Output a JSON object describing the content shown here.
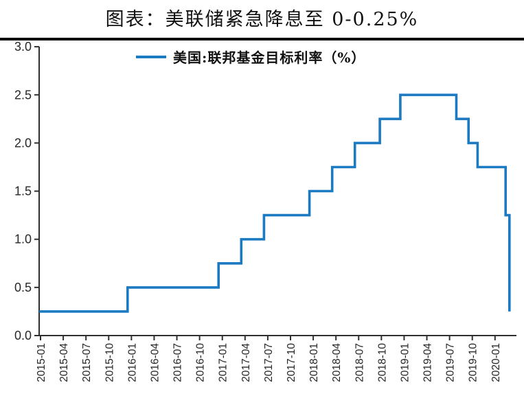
{
  "title": "图表：美联储紧急降息至 0-0.25%",
  "legend": {
    "label": "美国:联邦基金目标利率（%）"
  },
  "colors": {
    "line": "#1b7ac2",
    "axis": "#2e2e2e",
    "tick_text": "#262626",
    "title_text": "#111111",
    "title_rule": "#000000"
  },
  "chart_data": {
    "type": "line",
    "step": true,
    "title": "图表：美联储紧急降息至 0-0.25%",
    "series_name": "美国:联邦基金目标利率（%）",
    "xlabel": "",
    "ylabel": "",
    "ylim": [
      0.0,
      3.0
    ],
    "grid": false,
    "legend_position": "top-center",
    "y_tick_labels": [
      "0.0",
      "0.5",
      "1.0",
      "1.5",
      "2.0",
      "2.5",
      "3.0"
    ],
    "y_ticks": [
      0.0,
      0.5,
      1.0,
      1.5,
      2.0,
      2.5,
      3.0
    ],
    "x_tick_labels": [
      "2015-01",
      "2015-04",
      "2015-07",
      "2015-10",
      "2016-01",
      "2016-04",
      "2016-07",
      "2016-10",
      "2017-01",
      "2017-04",
      "2017-07",
      "2017-10",
      "2018-01",
      "2018-04",
      "2018-07",
      "2018-10",
      "2019-01",
      "2019-04",
      "2019-07",
      "2019-10",
      "2020-01"
    ],
    "x_tick_interval_months": 3,
    "steps": [
      {
        "date": "2015-01",
        "month": 0,
        "rate": 0.25
      },
      {
        "date": "2015-12",
        "month": 11.5,
        "rate": 0.5
      },
      {
        "date": "2016-12",
        "month": 23.5,
        "rate": 0.75
      },
      {
        "date": "2017-03",
        "month": 26.5,
        "rate": 1.0
      },
      {
        "date": "2017-06",
        "month": 29.5,
        "rate": 1.25
      },
      {
        "date": "2017-12",
        "month": 35.5,
        "rate": 1.5
      },
      {
        "date": "2018-03",
        "month": 38.5,
        "rate": 1.75
      },
      {
        "date": "2018-06",
        "month": 41.5,
        "rate": 2.0
      },
      {
        "date": "2018-09",
        "month": 44.8,
        "rate": 2.25
      },
      {
        "date": "2018-12",
        "month": 47.5,
        "rate": 2.5
      },
      {
        "date": "2019-08",
        "month": 54.9,
        "rate": 2.25
      },
      {
        "date": "2019-09",
        "month": 56.5,
        "rate": 2.0
      },
      {
        "date": "2019-10",
        "month": 57.7,
        "rate": 1.75
      },
      {
        "date": "2020-03",
        "month": 61.4,
        "rate": 1.25
      },
      {
        "date": "2020-03",
        "month": 61.9,
        "rate": 0.25
      }
    ]
  }
}
